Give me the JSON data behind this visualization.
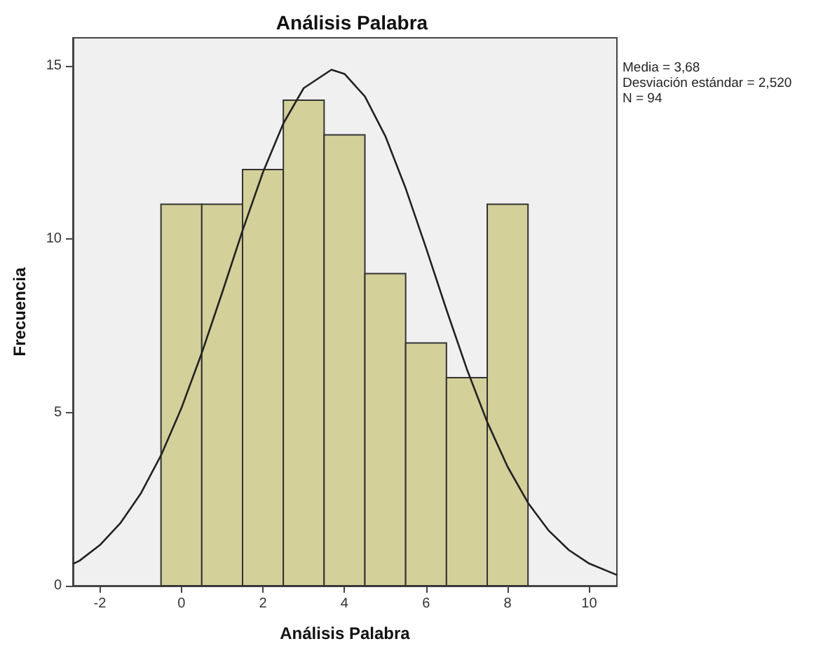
{
  "chart_data": {
    "type": "histogram",
    "title": "Análisis Palabra",
    "xlabel": "Análisis Palabra",
    "ylabel": "Frecuencia",
    "bins": [
      -0.5,
      0.5,
      1.5,
      2.5,
      3.5,
      4.5,
      5.5,
      6.5,
      7.5,
      8.5
    ],
    "values": [
      11,
      11,
      12,
      14,
      13,
      9,
      7,
      6,
      11
    ],
    "color": "#d4d09a",
    "series": [
      {
        "type": "line",
        "color": "#222222",
        "x": [
          -2.66,
          -2.5,
          -2,
          -1.5,
          -1,
          -0.5,
          0,
          0.5,
          1,
          1.5,
          2,
          2.5,
          3,
          3.68,
          4,
          4.5,
          5,
          5.5,
          6,
          6.5,
          7,
          7.5,
          8,
          8.5,
          9,
          9.5,
          10,
          10.68
        ],
        "values": [
          0.63,
          0.72,
          1.17,
          1.8,
          2.65,
          3.76,
          5.12,
          6.71,
          8.45,
          10.24,
          11.92,
          13.33,
          14.35,
          14.88,
          14.76,
          14.11,
          12.97,
          11.46,
          9.74,
          7.96,
          6.25,
          4.72,
          3.43,
          2.39,
          1.6,
          1.03,
          0.64,
          0.31
        ]
      }
    ],
    "xlim": [
      -2.66,
      10.68
    ],
    "xticks": [
      -2,
      0,
      2,
      4,
      6,
      8,
      10
    ],
    "ylim": [
      0,
      15.8
    ],
    "yticks": [
      0,
      5,
      10,
      15
    ],
    "grid": false,
    "annotations": [
      "Media = 3,68",
      "Desviación estándar = 2,520",
      "N = 94"
    ]
  }
}
